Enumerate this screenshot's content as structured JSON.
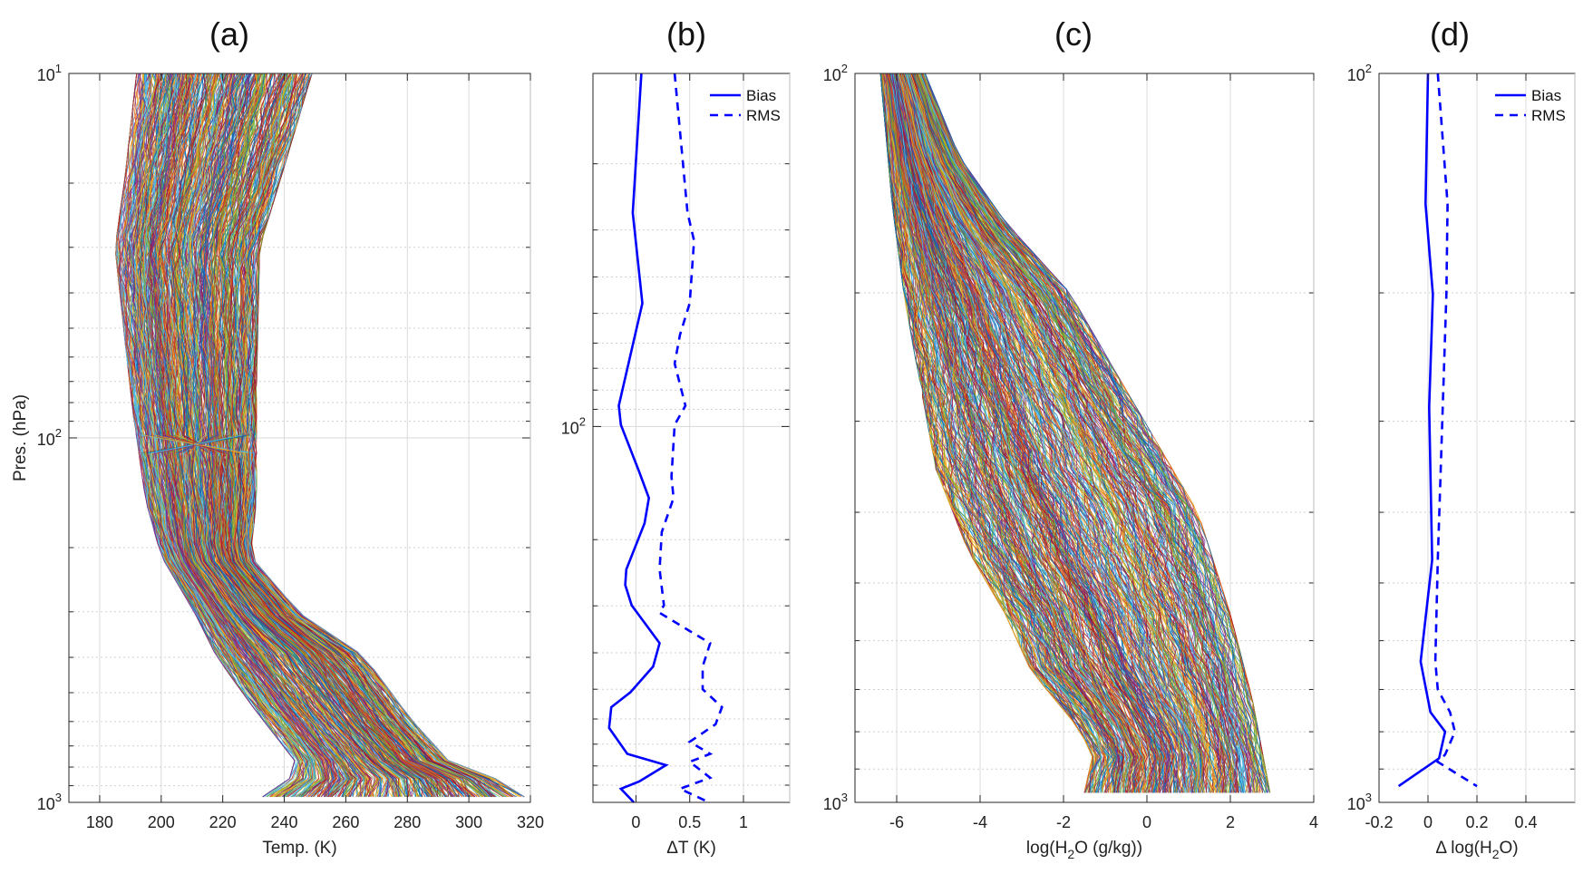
{
  "colors": {
    "profile_palette": [
      "#0072BD",
      "#D95319",
      "#EDB120",
      "#7E2F8E",
      "#77AC30",
      "#4DBEEE",
      "#A2142F"
    ],
    "bias_rms_line": "#0000FF",
    "axis": "#262626",
    "grid": "#dcdcdc"
  },
  "chart_data": [
    {
      "id": "a",
      "type": "line",
      "title": "(a)",
      "xlabel": "Temp. (K)",
      "ylabel": "Pres. (hPa)",
      "xlim": [
        170,
        320
      ],
      "ylim": [
        10,
        1000
      ],
      "yscale": "log",
      "y_reversed": true,
      "grid": true,
      "xticks": [
        "180",
        "200",
        "220",
        "240",
        "260",
        "280",
        "300",
        "320"
      ],
      "xtick_values": [
        180,
        200,
        220,
        240,
        260,
        280,
        300,
        320
      ],
      "yticks": [
        {
          "value": 10,
          "base": "10",
          "exp": "1"
        },
        {
          "value": 100,
          "base": "10",
          "exp": "2"
        },
        {
          "value": 1000,
          "base": "10",
          "exp": "3"
        }
      ],
      "series_style": "many overlapping profiles, multicolor",
      "profile_envelope": {
        "min": {
          "pressure": [
            10,
            20,
            30,
            52,
            88,
            100,
            149,
            211,
            303,
            398,
            550,
            780,
            850,
            930,
            960
          ],
          "value": [
            192,
            188,
            185,
            188,
            191,
            192,
            195,
            200,
            211,
            218,
            230,
            244,
            243,
            234,
            233
          ]
        },
        "max": {
          "pressure": [
            10,
            18,
            30,
            74,
            149,
            211,
            303,
            398,
            590,
            780,
            930,
            960
          ],
          "value": [
            249,
            240,
            232,
            231,
            231,
            229,
            245,
            266,
            281,
            294,
            320,
            318
          ]
        }
      }
    },
    {
      "id": "b",
      "type": "line",
      "title": "(b)",
      "xlabel": "ΔT (K)",
      "xlim": [
        -0.4,
        1.43
      ],
      "ylim": [
        11.5,
        1000
      ],
      "yscale": "log",
      "y_reversed": true,
      "grid": true,
      "xticks": [
        "0",
        "0.5",
        "1"
      ],
      "xtick_values": [
        0,
        0.5,
        1
      ],
      "yticks": [
        {
          "value": 100,
          "base": "10",
          "exp": "2"
        }
      ],
      "legend": {
        "position": "top-right",
        "entries": [
          "Bias",
          "RMS"
        ]
      },
      "series": [
        {
          "name": "Bias",
          "style": "solid",
          "pressure": [
            11.5,
            27,
            47,
            88,
            99,
            132,
            155,
            181,
            240,
            264,
            299,
            377,
            435,
            509,
            558,
            634,
            743,
            796,
            880,
            920,
            1000
          ],
          "values": [
            0.05,
            -0.03,
            0.06,
            -0.16,
            -0.14,
            0.03,
            0.12,
            0.08,
            -0.09,
            -0.1,
            -0.04,
            0.22,
            0.16,
            -0.05,
            -0.23,
            -0.25,
            -0.08,
            0.28,
            0.03,
            -0.14,
            -0.02
          ]
        },
        {
          "name": "RMS",
          "style": "dashed",
          "pressure": [
            11.5,
            27,
            32,
            47,
            57,
            68,
            88,
            99,
            136,
            155,
            191,
            240,
            299,
            313,
            350,
            377,
            435,
            500,
            558,
            620,
            690,
            743,
            780,
            860,
            920,
            1000
          ],
          "values": [
            0.36,
            0.48,
            0.54,
            0.5,
            0.41,
            0.36,
            0.46,
            0.36,
            0.33,
            0.35,
            0.24,
            0.22,
            0.26,
            0.22,
            0.5,
            0.69,
            0.62,
            0.62,
            0.8,
            0.74,
            0.5,
            0.69,
            0.5,
            0.69,
            0.41,
            0.68
          ]
        }
      ]
    },
    {
      "id": "c",
      "type": "line",
      "title": "(c)",
      "xlabel_parts": {
        "pre": "log(H",
        "sub": "2",
        "post": "O (g/kg))"
      },
      "xlim": [
        -7,
        4
      ],
      "ylim": [
        100,
        1000
      ],
      "yscale": "log",
      "y_reversed": true,
      "grid": true,
      "xticks": [
        "-6",
        "-4",
        "-2",
        "0",
        "2",
        "4"
      ],
      "xtick_values": [
        -6,
        -4,
        -2,
        0,
        2,
        4
      ],
      "yticks": [
        {
          "value": 100,
          "base": "10",
          "exp": "2"
        },
        {
          "value": 1000,
          "base": "10",
          "exp": "3"
        }
      ],
      "series_style": "many overlapping profiles, multicolor",
      "profile_envelope": {
        "min": {
          "pressure": [
            100,
            151,
            200,
            250,
            349,
            451,
            552,
            658,
            786,
            858,
            970
          ],
          "value": [
            -6.39,
            -6.11,
            -5.83,
            -5.53,
            -5.06,
            -4.29,
            -3.39,
            -2.79,
            -1.68,
            -1.29,
            -1.5
          ]
        },
        "max": {
          "pressure": [
            100,
            130,
            160,
            200,
            273,
            401,
            552,
            719,
            970
          ],
          "value": [
            -5.32,
            -4.5,
            -3.39,
            -1.85,
            -0.48,
            1.23,
            2.0,
            2.52,
            2.95
          ]
        }
      }
    },
    {
      "id": "d",
      "type": "line",
      "title": "(d)",
      "xlabel_parts": {
        "pre": "Δ log(H",
        "sub": "2",
        "post": "O)"
      },
      "xlim": [
        -0.2,
        0.6
      ],
      "ylim": [
        100,
        1000
      ],
      "yscale": "log",
      "y_reversed": true,
      "grid": true,
      "xticks": [
        "-0.2",
        "0",
        "0.2",
        "0.4"
      ],
      "xtick_values": [
        -0.2,
        0,
        0.2,
        0.4
      ],
      "yticks": [
        {
          "value": 100,
          "base": "10",
          "exp": "2"
        },
        {
          "value": 1000,
          "base": "10",
          "exp": "3"
        }
      ],
      "legend": {
        "position": "top-right",
        "entries": [
          "Bias",
          "RMS"
        ]
      },
      "series": [
        {
          "name": "Bias",
          "style": "solid",
          "pressure": [
            100,
            151,
            201,
            287,
            465,
            641,
            752,
            800,
            870,
            950
          ],
          "values": [
            0.0,
            -0.01,
            0.02,
            0.005,
            0.017,
            -0.03,
            0.01,
            0.07,
            0.045,
            -0.12
          ]
        },
        {
          "name": "RMS",
          "style": "dashed",
          "pressure": [
            100,
            151,
            201,
            465,
            641,
            700,
            752,
            800,
            860,
            880,
            950
          ],
          "values": [
            0.04,
            0.08,
            0.075,
            0.04,
            0.03,
            0.04,
            0.09,
            0.11,
            0.07,
            0.04,
            0.2
          ]
        }
      ]
    }
  ]
}
